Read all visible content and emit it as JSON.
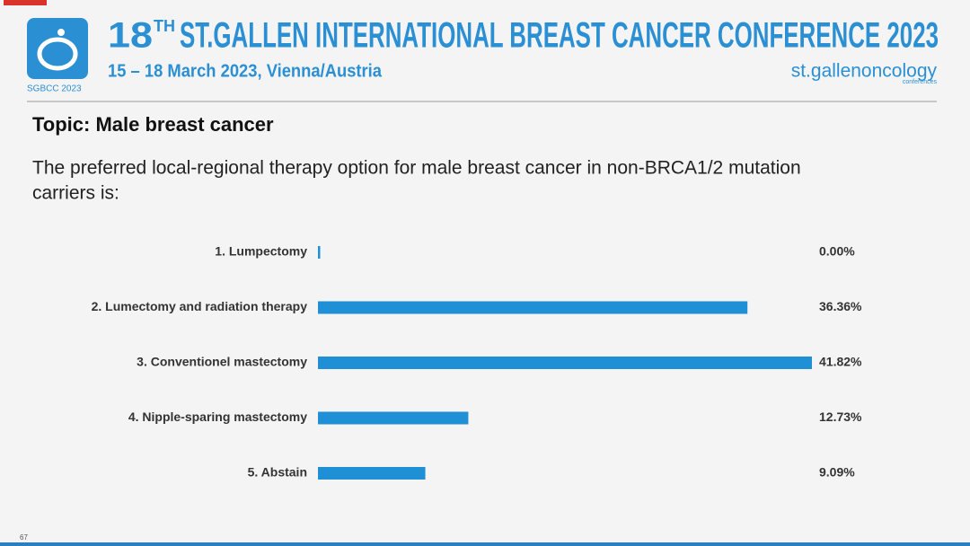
{
  "header": {
    "title_number": "18",
    "title_suffix": "TH",
    "title_rest": "ST.GALLEN INTERNATIONAL BREAST CANCER CONFERENCE 2023",
    "subtitle": "15 – 18 March 2023, Vienna/Austria",
    "logo_text": "SGBCC 2023",
    "brand": "st.gallenoncology",
    "brand_sub": "conferences"
  },
  "topic": "Topic: Male breast cancer",
  "question": [
    "The preferred local-regional therapy option for male breast cancer in non-BRCA1/2 mutation",
    "carriers is:"
  ],
  "page_number": "67",
  "chart_data": {
    "type": "bar",
    "orientation": "horizontal",
    "color": "#1f8fd6",
    "categories": [
      "1. Lumpectomy",
      "2. Lumectomy and radiation therapy",
      "3. Conventionel mastectomy",
      "4. Nipple-sparing mastectomy",
      "5. Abstain"
    ],
    "values": [
      0,
      36.36,
      41.82,
      12.73,
      9.09
    ],
    "value_labels": [
      "0.00%",
      "36.36%",
      "41.82%",
      "12.73%",
      "9.09%"
    ]
  }
}
